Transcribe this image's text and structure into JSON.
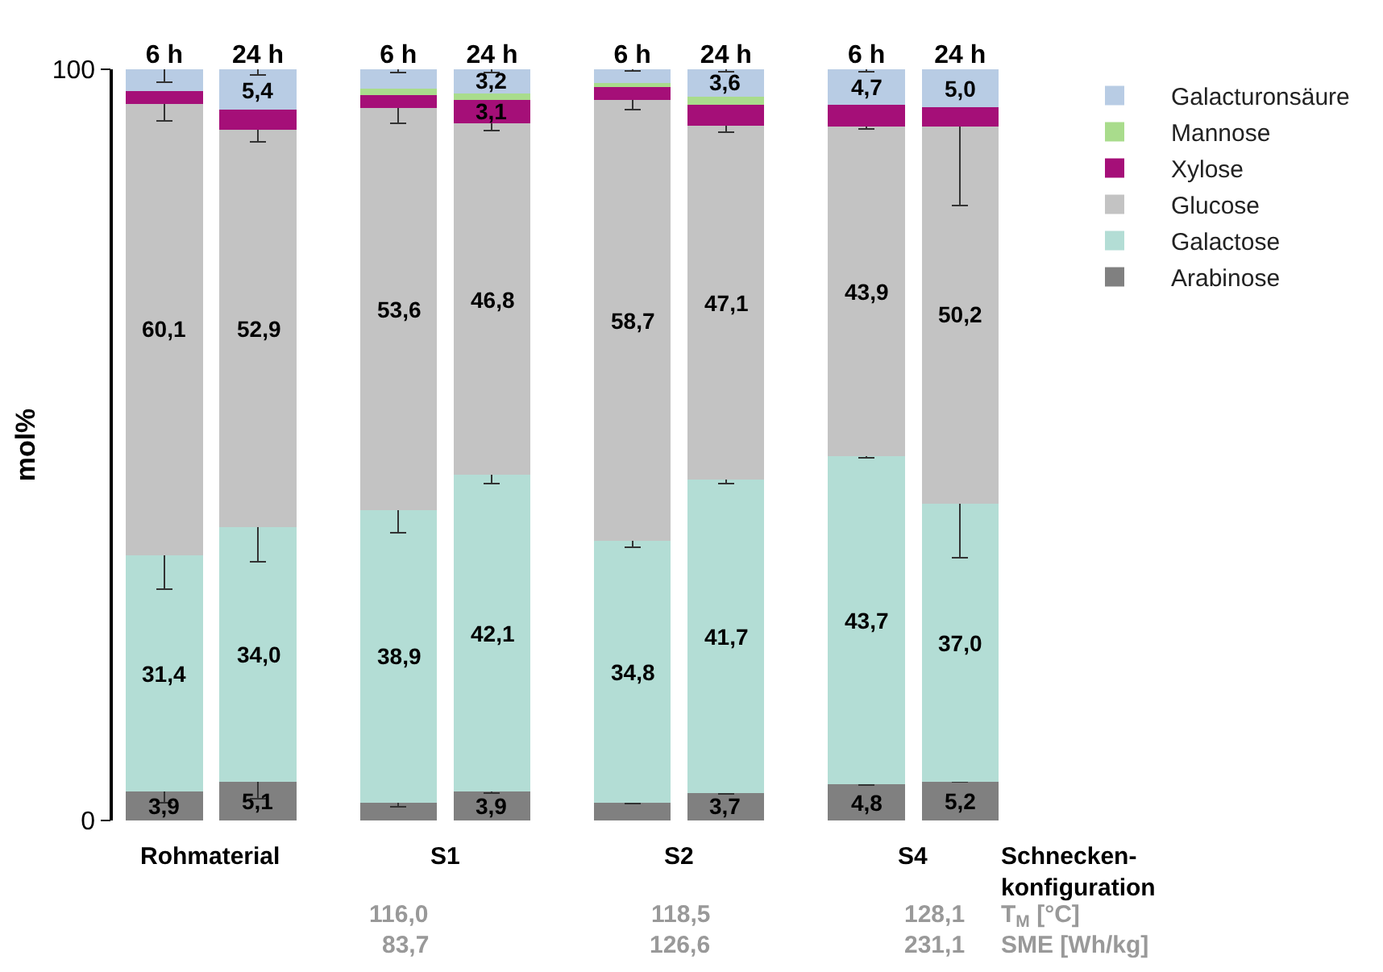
{
  "chart_data": {
    "type": "bar",
    "stacked": true,
    "ylabel": "mol%",
    "categories": [
      "6 h",
      "24 h",
      "6 h",
      "24 h",
      "6 h",
      "24 h",
      "6 h",
      "24 h"
    ],
    "ylim": [
      0,
      100
    ],
    "yticks": [
      0,
      100
    ],
    "legend": "top right",
    "series": [
      {
        "name": "Arabinose",
        "color": "#808080",
        "values": [
          3.9,
          5.1,
          2.4,
          3.9,
          2.4,
          3.7,
          4.8,
          5.2
        ],
        "errors": [
          1.5,
          2.2,
          0.6,
          0.3,
          0.1,
          0.2,
          0.1,
          0.1
        ],
        "value_labels": [
          "3,9",
          "5,1",
          null,
          "3,9",
          null,
          "3,7",
          "4,8",
          "5,2"
        ]
      },
      {
        "name": "Galactose",
        "color": "#b3ddd5",
        "values": [
          31.4,
          34.0,
          38.9,
          42.1,
          34.8,
          41.7,
          43.7,
          37.0
        ],
        "errors": [
          4.5,
          4.7,
          3.0,
          1.1,
          0.8,
          0.5,
          0.2,
          7.2
        ],
        "value_labels": [
          "31,4",
          "34,0",
          "38,9",
          "42,1",
          "34,8",
          "41,7",
          "43,7",
          "37,0"
        ]
      },
      {
        "name": "Glucose",
        "color": "#c3c3c3",
        "values": [
          60.1,
          52.9,
          53.6,
          46.8,
          58.7,
          47.1,
          43.9,
          50.2
        ],
        "errors": [
          2.3,
          1.7,
          2.1,
          1.0,
          1.3,
          0.9,
          0.3,
          10.5
        ],
        "value_labels": [
          "60,1",
          "52,9",
          "53,6",
          "46,8",
          "58,7",
          "47,1",
          "43,9",
          "50,2"
        ]
      },
      {
        "name": "Xylose",
        "color": "#a50f78",
        "values": [
          1.7,
          2.6,
          1.7,
          3.1,
          1.9,
          2.8,
          2.9,
          2.6
        ],
        "value_labels": [
          null,
          null,
          null,
          "3,1",
          null,
          null,
          null,
          null
        ]
      },
      {
        "name": "Mannose",
        "color": "#a9dc8c",
        "values": [
          0,
          0,
          0.8,
          0.9,
          0.4,
          1.1,
          0,
          0
        ]
      },
      {
        "name": "Galacturonsäure",
        "color": "#b8cce4",
        "values": [
          2.9,
          5.4,
          2.6,
          3.2,
          1.8,
          3.6,
          4.7,
          5.0
        ],
        "errors": [
          1.7,
          0.8,
          0.4,
          0.4,
          0.2,
          0.3,
          0.3,
          null
        ],
        "value_labels": [
          null,
          "5,4",
          null,
          "3,2",
          null,
          "3,6",
          "4,7",
          "5,0"
        ]
      }
    ],
    "annotations": [
      "Rohmaterial",
      "S1",
      "S2",
      "S4",
      "Schnecken-\nkonfiguration",
      "116,0",
      "118,5",
      "128,1",
      "T$_{M}$ [°C]",
      "83,7",
      "126,6",
      "231,1",
      "SME [Wh/kg]"
    ]
  }
}
